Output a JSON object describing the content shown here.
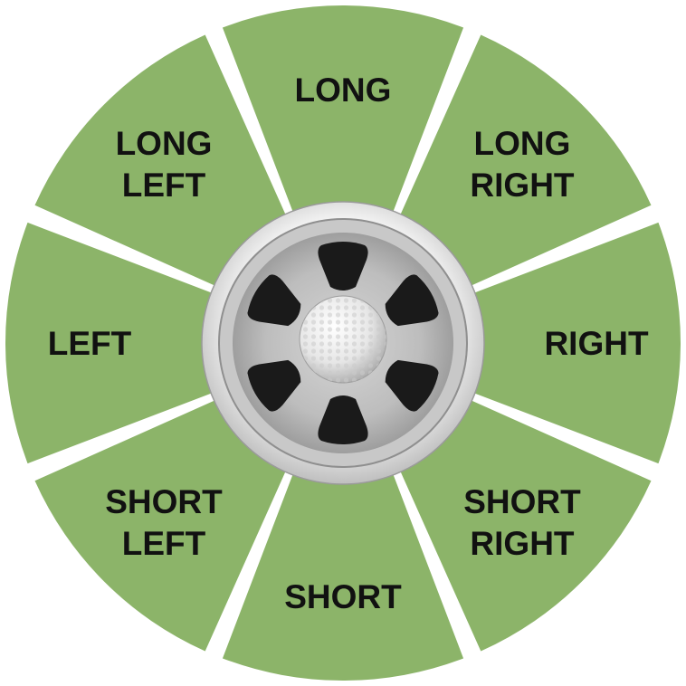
{
  "colors": {
    "segment": "#8cb469",
    "gap": "#ffffff",
    "cup_outer": "#e2e2e2",
    "cup_inner": "#c8c8c8",
    "cup_floor": "#b9b9b9",
    "cup_hole": "#1a1a1a",
    "ball": "#eeeeee"
  },
  "segments": [
    {
      "id": "long",
      "lines": [
        "LONG"
      ]
    },
    {
      "id": "long-right",
      "lines": [
        "LONG",
        "RIGHT"
      ]
    },
    {
      "id": "right",
      "lines": [
        "RIGHT"
      ]
    },
    {
      "id": "short-right",
      "lines": [
        "SHORT",
        "RIGHT"
      ]
    },
    {
      "id": "short",
      "lines": [
        "SHORT"
      ]
    },
    {
      "id": "short-left",
      "lines": [
        "SHORT",
        "LEFT"
      ]
    },
    {
      "id": "left",
      "lines": [
        "LEFT"
      ]
    },
    {
      "id": "long-left",
      "lines": [
        "LONG",
        "LEFT"
      ]
    }
  ],
  "center_graphic": {
    "icon": "golf-cup-with-ball-icon",
    "hole_count": 6
  }
}
